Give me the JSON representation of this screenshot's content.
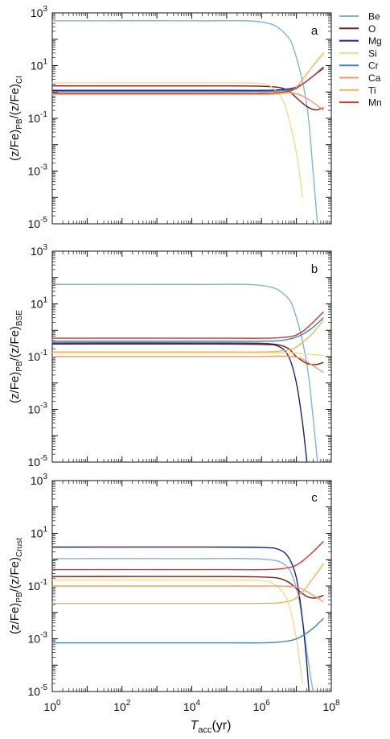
{
  "figure": {
    "xlabel_main": "T",
    "xlabel_sub": "acc",
    "xlabel_unit": "(yr)"
  },
  "series_colors": {
    "Be": "#7fb5dc",
    "O": "#7a1a1a",
    "Mg": "#1a237e",
    "Si": "#fbd98a",
    "Cr": "#3a86c0",
    "Ca": "#f59a6a",
    "Ti": "#f6b350",
    "Mn": "#d9342c"
  },
  "legend": [
    "Be",
    "O",
    "Mg",
    "Si",
    "Cr",
    "Ca",
    "Ti",
    "Mn"
  ],
  "chart_data": [
    {
      "type": "line",
      "panel_label": "a",
      "ylabel_main": "(z/Fe)",
      "ylabel_sub1": "PB",
      "ylabel_mid": "/(z/Fe)",
      "ylabel_sub2": "CI",
      "xscale": "log",
      "yscale": "log",
      "xlim": [
        1,
        100000000
      ],
      "ylim": [
        1e-05,
        1000
      ],
      "series": [
        {
          "name": "Be",
          "x": [
            1,
            10000,
            1000000,
            5000000,
            10000000,
            20000000,
            30000000,
            40000000
          ],
          "y": [
            500,
            500,
            450,
            150,
            20,
            0.3,
            0.001,
            1e-05
          ]
        },
        {
          "name": "O",
          "x": [
            1,
            100000,
            1000000,
            3000000,
            6000000,
            10000000,
            20000000,
            35000000,
            60000000
          ],
          "y": [
            1.7,
            1.7,
            1.65,
            1.5,
            1.1,
            0.6,
            0.28,
            0.21,
            0.25
          ]
        },
        {
          "name": "Mg",
          "x": [
            1,
            100000,
            1000000,
            3000000,
            8000000,
            15000000,
            30000000,
            60000000
          ],
          "y": [
            1.15,
            1.15,
            1.15,
            1.2,
            1.4,
            2,
            4,
            8
          ]
        },
        {
          "name": "Si",
          "x": [
            1,
            100000,
            1000000,
            2000000,
            4000000,
            6000000,
            10000000,
            15000000
          ],
          "y": [
            2.2,
            2.2,
            2.1,
            1.5,
            0.5,
            0.1,
            0.005,
            0.0001
          ]
        },
        {
          "name": "Cr",
          "x": [
            1,
            100000,
            1000000,
            3000000,
            8000000,
            15000000,
            30000000,
            60000000
          ],
          "y": [
            1.05,
            1.05,
            1.05,
            1.1,
            1.3,
            2,
            4,
            9
          ]
        },
        {
          "name": "Ca",
          "x": [
            1,
            100000,
            1000000,
            3000000,
            8000000,
            15000000,
            30000000,
            60000000
          ],
          "y": [
            0.85,
            0.85,
            0.85,
            0.9,
            0.9,
            0.7,
            0.4,
            0.2
          ]
        },
        {
          "name": "Ti",
          "x": [
            1,
            100000,
            1000000,
            3000000,
            8000000,
            15000000,
            30000000,
            60000000
          ],
          "y": [
            0.8,
            0.8,
            0.8,
            0.85,
            1.2,
            3,
            10,
            30
          ]
        },
        {
          "name": "Mn",
          "x": [
            1,
            100000,
            1000000,
            3000000,
            8000000,
            15000000,
            30000000,
            60000000
          ],
          "y": [
            0.9,
            0.9,
            0.9,
            0.95,
            1.2,
            2,
            4,
            9
          ]
        }
      ]
    },
    {
      "type": "line",
      "panel_label": "b",
      "ylabel_main": "(z/Fe)",
      "ylabel_sub1": "PB",
      "ylabel_mid": "/(z/Fe)",
      "ylabel_sub2": "BSE",
      "xscale": "log",
      "yscale": "log",
      "xlim": [
        1,
        100000000
      ],
      "ylim": [
        1e-05,
        1000
      ],
      "series": [
        {
          "name": "Be",
          "x": [
            1,
            10000,
            1000000,
            5000000,
            10000000,
            20000000,
            30000000,
            40000000
          ],
          "y": [
            55,
            55,
            50,
            20,
            3,
            0.05,
            0.0005,
            1e-05
          ]
        },
        {
          "name": "O",
          "x": [
            1,
            100000,
            1000000,
            3000000,
            6000000,
            10000000,
            20000000,
            35000000,
            60000000
          ],
          "y": [
            0.33,
            0.33,
            0.32,
            0.28,
            0.2,
            0.1,
            0.055,
            0.05,
            0.06
          ]
        },
        {
          "name": "Mg",
          "x": [
            1,
            100000,
            1000000,
            3000000,
            6000000,
            10000000,
            15000000,
            20000000,
            25000000
          ],
          "y": [
            0.3,
            0.3,
            0.29,
            0.25,
            0.1,
            0.01,
            0.0003,
            1e-05,
            1e-06
          ]
        },
        {
          "name": "Si",
          "x": [
            1,
            100000,
            1000000,
            3000000,
            8000000,
            15000000,
            30000000,
            60000000
          ],
          "y": [
            0.14,
            0.14,
            0.14,
            0.14,
            0.14,
            0.13,
            0.12,
            0.11
          ]
        },
        {
          "name": "Cr",
          "x": [
            1,
            100000,
            1000000,
            3000000,
            8000000,
            15000000,
            30000000,
            60000000
          ],
          "y": [
            0.38,
            0.38,
            0.38,
            0.4,
            0.5,
            0.7,
            1.3,
            3
          ]
        },
        {
          "name": "Ca",
          "x": [
            1,
            100000,
            1000000,
            3000000,
            8000000,
            15000000,
            30000000,
            60000000
          ],
          "y": [
            0.1,
            0.1,
            0.1,
            0.105,
            0.1,
            0.08,
            0.045,
            0.025
          ]
        },
        {
          "name": "Ti",
          "x": [
            1,
            100000,
            1000000,
            3000000,
            8000000,
            15000000,
            30000000,
            60000000
          ],
          "y": [
            0.15,
            0.15,
            0.15,
            0.16,
            0.2,
            0.35,
            0.8,
            2.5
          ]
        },
        {
          "name": "Mn",
          "x": [
            1,
            100000,
            1000000,
            3000000,
            8000000,
            15000000,
            30000000,
            60000000
          ],
          "y": [
            0.5,
            0.5,
            0.5,
            0.52,
            0.6,
            0.9,
            2,
            5
          ]
        }
      ]
    },
    {
      "type": "line",
      "panel_label": "c",
      "ylabel_main": "(z/Fe)",
      "ylabel_sub1": "PB",
      "ylabel_mid": "/(z/Fe)",
      "ylabel_sub2": "Crust",
      "xscale": "log",
      "yscale": "log",
      "xlim": [
        1,
        100000000
      ],
      "ylim": [
        1e-05,
        1000
      ],
      "series": [
        {
          "name": "Be",
          "x": [
            1,
            10000,
            1000000,
            5000000,
            10000000,
            15000000,
            20000000,
            30000000
          ],
          "y": [
            1.1,
            1.1,
            1.05,
            0.6,
            0.08,
            0.005,
            0.0003,
            1e-05
          ]
        },
        {
          "name": "O",
          "x": [
            1,
            100000,
            1000000,
            3000000,
            6000000,
            10000000,
            20000000,
            35000000,
            60000000
          ],
          "y": [
            0.23,
            0.23,
            0.22,
            0.2,
            0.14,
            0.08,
            0.04,
            0.035,
            0.045
          ]
        },
        {
          "name": "Mg",
          "x": [
            1,
            100000,
            1000000,
            3000000,
            6000000,
            10000000,
            15000000,
            20000000,
            25000000
          ],
          "y": [
            3,
            3,
            2.9,
            2.5,
            1.2,
            0.2,
            0.005,
            0.0001,
            2e-06
          ]
        },
        {
          "name": "Si",
          "x": [
            1,
            100000,
            1000000,
            2000000,
            4000000,
            6000000,
            10000000,
            15000000
          ],
          "y": [
            0.17,
            0.17,
            0.16,
            0.13,
            0.06,
            0.02,
            0.001,
            2e-05
          ]
        },
        {
          "name": "Cr",
          "x": [
            1,
            100000,
            1000000,
            3000000,
            8000000,
            15000000,
            30000000,
            60000000
          ],
          "y": [
            0.0007,
            0.0007,
            0.0007,
            0.00075,
            0.0009,
            0.0013,
            0.0025,
            0.006
          ]
        },
        {
          "name": "Ca",
          "x": [
            1,
            100000,
            1000000,
            3000000,
            8000000,
            15000000,
            30000000,
            60000000
          ],
          "y": [
            0.1,
            0.1,
            0.1,
            0.1,
            0.095,
            0.075,
            0.045,
            0.025
          ]
        },
        {
          "name": "Ti",
          "x": [
            1,
            100000,
            1000000,
            3000000,
            8000000,
            15000000,
            30000000,
            60000000
          ],
          "y": [
            0.022,
            0.022,
            0.022,
            0.023,
            0.03,
            0.06,
            0.2,
            0.7
          ]
        },
        {
          "name": "Mn",
          "x": [
            1,
            100000,
            1000000,
            3000000,
            8000000,
            15000000,
            30000000,
            60000000
          ],
          "y": [
            0.42,
            0.42,
            0.42,
            0.44,
            0.55,
            0.9,
            2,
            5
          ]
        }
      ]
    }
  ]
}
